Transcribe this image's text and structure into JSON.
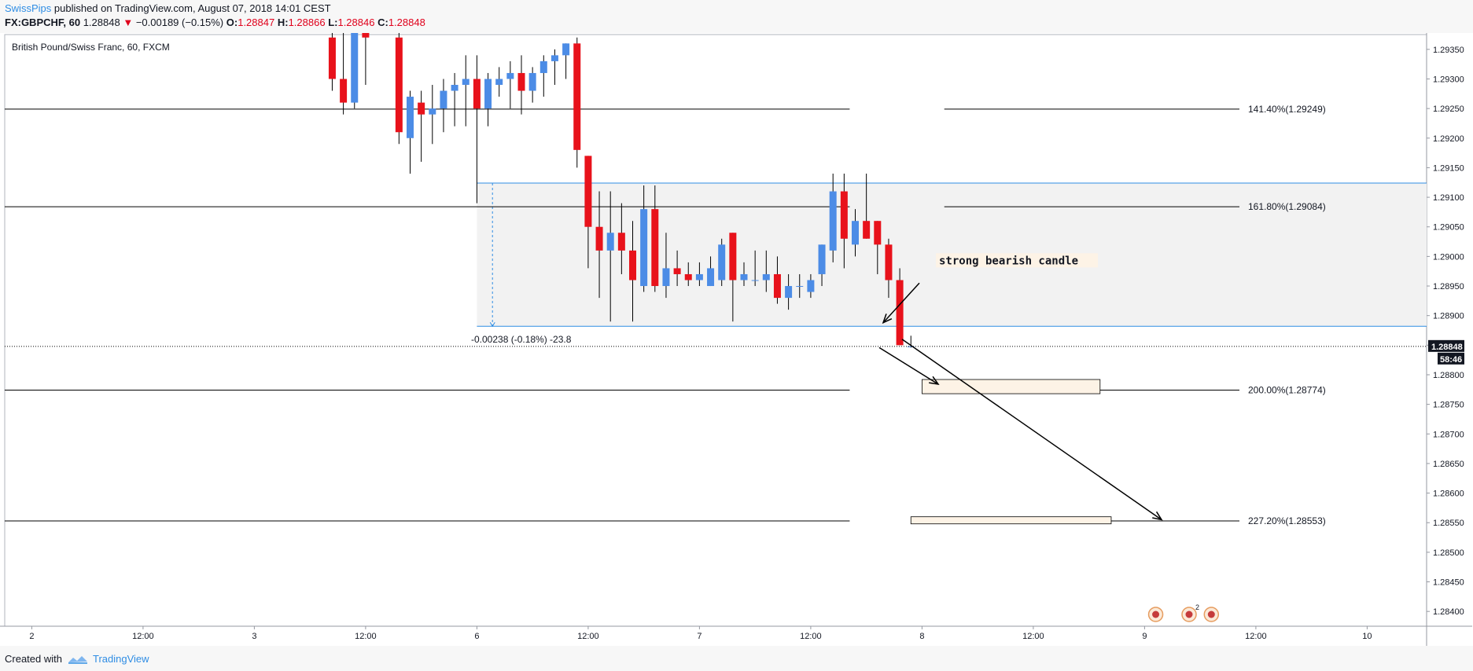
{
  "header": {
    "author": "SwissPips",
    "published": "published on TradingView.com, August 07, 2018 14:01 CEST",
    "symbol": "FX:GBPCHF, 60",
    "last": "1.28848",
    "change": "−0.00189 (−0.15%)",
    "o_label": "O:",
    "o_value": "1.28847",
    "h_label": "H:",
    "h_value": "1.28866",
    "l_label": "L:",
    "l_value": "1.28846",
    "c_label": "C:",
    "c_value": "1.28848"
  },
  "footer": {
    "created_with": "Created with",
    "brand": "TradingView"
  },
  "chart_data": {
    "type": "candlestick",
    "title": "British Pound/Swiss Franc, 60, FXCM",
    "ylim": [
      1.28375,
      1.29375
    ],
    "y_ticks": [
      "1.29350",
      "1.29300",
      "1.29250",
      "1.29200",
      "1.29150",
      "1.29100",
      "1.29050",
      "1.29000",
      "1.28950",
      "1.28900",
      "1.28850",
      "1.28800",
      "1.28750",
      "1.28700",
      "1.28650",
      "1.28600",
      "1.28550",
      "1.28500",
      "1.28450",
      "1.28400"
    ],
    "x_ticks": [
      {
        "label": "2",
        "t": -44
      },
      {
        "label": "12:00",
        "t": -34
      },
      {
        "label": "3",
        "t": -24
      },
      {
        "label": "12:00",
        "t": -14
      },
      {
        "label": "6",
        "t": -4
      },
      {
        "label": "12:00",
        "t": 6
      },
      {
        "label": "7",
        "t": 16
      },
      {
        "label": "12:00",
        "t": 26
      },
      {
        "label": "8",
        "t": 36
      },
      {
        "label": "12:00",
        "t": 46
      },
      {
        "label": "9",
        "t": 56
      },
      {
        "label": "12:00",
        "t": 66
      },
      {
        "label": "10",
        "t": 76
      }
    ],
    "candles": [
      {
        "t": -17,
        "o": 1.2937,
        "h": 1.2942,
        "l": 1.2928,
        "c": 1.293
      },
      {
        "t": -16,
        "o": 1.293,
        "h": 1.294,
        "l": 1.2924,
        "c": 1.2926
      },
      {
        "t": -15,
        "o": 1.2926,
        "h": 1.2942,
        "l": 1.2925,
        "c": 1.294
      },
      {
        "t": -14,
        "o": 1.294,
        "h": 1.2944,
        "l": 1.2929,
        "c": 1.2937
      },
      {
        "t": -11,
        "o": 1.2937,
        "h": 1.2942,
        "l": 1.2919,
        "c": 1.2921
      },
      {
        "t": -10,
        "o": 1.292,
        "h": 1.2928,
        "l": 1.2914,
        "c": 1.2927
      },
      {
        "t": -9,
        "o": 1.2926,
        "h": 1.2928,
        "l": 1.2916,
        "c": 1.2924
      },
      {
        "t": -8,
        "o": 1.2924,
        "h": 1.2929,
        "l": 1.2919,
        "c": 1.2925
      },
      {
        "t": -7,
        "o": 1.2925,
        "h": 1.293,
        "l": 1.2921,
        "c": 1.2928
      },
      {
        "t": -6,
        "o": 1.2928,
        "h": 1.2931,
        "l": 1.2922,
        "c": 1.2929
      },
      {
        "t": -5,
        "o": 1.2929,
        "h": 1.2934,
        "l": 1.2922,
        "c": 1.293
      },
      {
        "t": -4,
        "o": 1.293,
        "h": 1.2934,
        "l": 1.2909,
        "c": 1.2925
      },
      {
        "t": -3,
        "o": 1.2925,
        "h": 1.2931,
        "l": 1.2922,
        "c": 1.293
      },
      {
        "t": -2,
        "o": 1.2929,
        "h": 1.2932,
        "l": 1.2927,
        "c": 1.293
      },
      {
        "t": -1,
        "o": 1.293,
        "h": 1.2933,
        "l": 1.2925,
        "c": 1.2931
      },
      {
        "t": 0,
        "o": 1.2931,
        "h": 1.2934,
        "l": 1.2924,
        "c": 1.2928
      },
      {
        "t": 1,
        "o": 1.2928,
        "h": 1.2932,
        "l": 1.2926,
        "c": 1.2931
      },
      {
        "t": 2,
        "o": 1.2931,
        "h": 1.2934,
        "l": 1.2927,
        "c": 1.2933
      },
      {
        "t": 3,
        "o": 1.2933,
        "h": 1.2935,
        "l": 1.2929,
        "c": 1.2934
      },
      {
        "t": 4,
        "o": 1.2934,
        "h": 1.2936,
        "l": 1.293,
        "c": 1.2936
      },
      {
        "t": 5,
        "o": 1.2936,
        "h": 1.2937,
        "l": 1.2915,
        "c": 1.2918
      },
      {
        "t": 6,
        "o": 1.2917,
        "h": 1.2917,
        "l": 1.2898,
        "c": 1.2905
      },
      {
        "t": 7,
        "o": 1.2905,
        "h": 1.2911,
        "l": 1.2893,
        "c": 1.2901
      },
      {
        "t": 8,
        "o": 1.2901,
        "h": 1.2911,
        "l": 1.2889,
        "c": 1.2904
      },
      {
        "t": 9,
        "o": 1.2904,
        "h": 1.2909,
        "l": 1.2897,
        "c": 1.2901
      },
      {
        "t": 10,
        "o": 1.2901,
        "h": 1.2906,
        "l": 1.2889,
        "c": 1.2896
      },
      {
        "t": 11,
        "o": 1.2895,
        "h": 1.2912,
        "l": 1.2894,
        "c": 1.2908
      },
      {
        "t": 12,
        "o": 1.2908,
        "h": 1.2912,
        "l": 1.2894,
        "c": 1.2895
      },
      {
        "t": 13,
        "o": 1.2895,
        "h": 1.2904,
        "l": 1.2893,
        "c": 1.2898
      },
      {
        "t": 14,
        "o": 1.2898,
        "h": 1.2901,
        "l": 1.2895,
        "c": 1.2897
      },
      {
        "t": 15,
        "o": 1.2897,
        "h": 1.2899,
        "l": 1.2895,
        "c": 1.2896
      },
      {
        "t": 16,
        "o": 1.2896,
        "h": 1.2899,
        "l": 1.2895,
        "c": 1.2897
      },
      {
        "t": 17,
        "o": 1.2895,
        "h": 1.29,
        "l": 1.2895,
        "c": 1.2898
      },
      {
        "t": 18,
        "o": 1.2896,
        "h": 1.2903,
        "l": 1.2895,
        "c": 1.2902
      },
      {
        "t": 19,
        "o": 1.2904,
        "h": 1.2904,
        "l": 1.2889,
        "c": 1.2896
      },
      {
        "t": 20,
        "o": 1.2896,
        "h": 1.2899,
        "l": 1.2895,
        "c": 1.2897
      },
      {
        "t": 21,
        "o": 1.2896,
        "h": 1.2901,
        "l": 1.2895,
        "c": 1.2896
      },
      {
        "t": 22,
        "o": 1.2896,
        "h": 1.2901,
        "l": 1.2894,
        "c": 1.2897
      },
      {
        "t": 23,
        "o": 1.2897,
        "h": 1.29,
        "l": 1.2892,
        "c": 1.2893
      },
      {
        "t": 24,
        "o": 1.2893,
        "h": 1.2897,
        "l": 1.2891,
        "c": 1.2895
      },
      {
        "t": 25,
        "o": 1.2895,
        "h": 1.2897,
        "l": 1.2893,
        "c": 1.2895
      },
      {
        "t": 26,
        "o": 1.2894,
        "h": 1.2897,
        "l": 1.2893,
        "c": 1.2896
      },
      {
        "t": 27,
        "o": 1.2897,
        "h": 1.2902,
        "l": 1.2895,
        "c": 1.2902
      },
      {
        "t": 28,
        "o": 1.2901,
        "h": 1.2914,
        "l": 1.2899,
        "c": 1.2911
      },
      {
        "t": 29,
        "o": 1.2911,
        "h": 1.2914,
        "l": 1.2898,
        "c": 1.2903
      },
      {
        "t": 30,
        "o": 1.2902,
        "h": 1.2908,
        "l": 1.29,
        "c": 1.2906
      },
      {
        "t": 31,
        "o": 1.2906,
        "h": 1.2914,
        "l": 1.2903,
        "c": 1.2903
      },
      {
        "t": 32,
        "o": 1.2906,
        "h": 1.2906,
        "l": 1.2897,
        "c": 1.2902
      },
      {
        "t": 33,
        "o": 1.2902,
        "h": 1.2903,
        "l": 1.2893,
        "c": 1.2896
      },
      {
        "t": 34,
        "o": 1.2896,
        "h": 1.2898,
        "l": 1.2885,
        "c": 1.2885
      },
      {
        "t": 35,
        "o": 1.28847,
        "h": 1.28866,
        "l": 1.28846,
        "c": 1.28848
      }
    ],
    "levels": [
      {
        "label": "141.40%(1.29249)",
        "value": 1.29249
      },
      {
        "label": "161.80%(1.29084)",
        "value": 1.29084
      },
      {
        "label": "200.00%(1.28774)",
        "value": 1.28774
      },
      {
        "label": "227.20%(1.28553)",
        "value": 1.28553
      }
    ],
    "range_box": {
      "top": 1.29124,
      "bottom": 1.28882,
      "t_start": -4
    },
    "measure_label": "-0.00238 (-0.18%) -23.8",
    "annotation": "strong bearish candle",
    "last_price": "1.28848",
    "countdown": "58:46",
    "target_boxes": [
      {
        "top": 1.28792,
        "bottom": 1.28768,
        "t_start": 36,
        "t_end": 52
      },
      {
        "top": 1.2856,
        "bottom": 1.28548,
        "t_start": 35,
        "t_end": 53
      }
    ],
    "event_badges": [
      {
        "t": 57,
        "sup": ""
      },
      {
        "t": 60,
        "sup": "2"
      },
      {
        "t": 62,
        "sup": ""
      }
    ],
    "colors": {
      "up": "#4c8ce6",
      "down": "#e8121b",
      "level": "#000000",
      "range": "#2f8de4"
    }
  }
}
